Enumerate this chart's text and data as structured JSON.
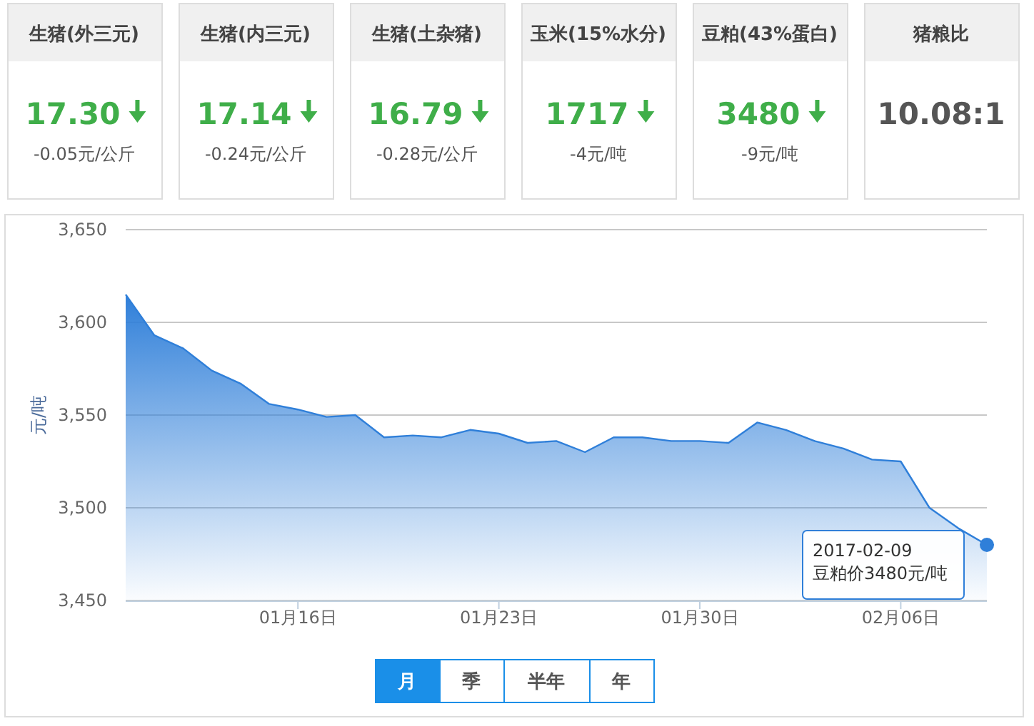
{
  "chart_data": [
    {
      "type": "other",
      "title": "生猪(外三元)",
      "annotations": [
        "17.30",
        "-0.05元/公斤"
      ]
    },
    {
      "type": "other",
      "title": "生猪(内三元)",
      "annotations": [
        "17.14",
        "-0.24元/公斤"
      ]
    },
    {
      "type": "other",
      "title": "生猪(土杂猪)",
      "annotations": [
        "16.79",
        "-0.28元/公斤"
      ]
    },
    {
      "type": "other",
      "title": "玉米(15%水分)",
      "annotations": [
        "1717",
        "-4元/吨"
      ]
    },
    {
      "type": "other",
      "title": "豆粕(43%蛋白)",
      "annotations": [
        "3480",
        "-9元/吨"
      ]
    },
    {
      "type": "other",
      "title": "猪粮比",
      "annotations": [
        "10.08:1"
      ]
    },
    {
      "type": "area",
      "ylabel": "元/吨",
      "grid": "y",
      "marker": "none",
      "x": [
        "2017-01-10",
        "2017-01-11",
        "2017-01-12",
        "2017-01-13",
        "2017-01-14",
        "2017-01-15",
        "2017-01-16",
        "2017-01-17",
        "2017-01-18",
        "2017-01-19",
        "2017-01-20",
        "2017-01-21",
        "2017-01-22",
        "2017-01-23",
        "2017-01-24",
        "2017-01-25",
        "2017-01-26",
        "2017-01-27",
        "2017-01-28",
        "2017-01-29",
        "2017-01-30",
        "2017-01-31",
        "2017-02-01",
        "2017-02-02",
        "2017-02-03",
        "2017-02-04",
        "2017-02-05",
        "2017-02-06",
        "2017-02-07",
        "2017-02-08",
        "2017-02-09"
      ],
      "series": [
        {
          "color": "#2f7fd9",
          "values": [
            3615,
            3593,
            3586,
            3574,
            3567,
            3556,
            3553,
            3549,
            3550,
            3538,
            3539,
            3538,
            3542,
            3540,
            3535,
            3536,
            3530,
            3538,
            3538,
            3536,
            3536,
            3535,
            3546,
            3542,
            3536,
            3532,
            3526,
            3525,
            3500,
            3489,
            3480
          ]
        }
      ],
      "xlim": [
        "2017-01-10",
        "2017-02-09"
      ],
      "xticks": [
        {
          "value": "2017-01-16",
          "label": "01月16日"
        },
        {
          "value": "2017-01-23",
          "label": "01月23日"
        },
        {
          "value": "2017-01-30",
          "label": "01月30日"
        },
        {
          "value": "2017-02-06",
          "label": "02月06日"
        }
      ],
      "ylim": [
        3450,
        3650
      ],
      "yticks": [
        {
          "value": 3450,
          "label": "3,450"
        },
        {
          "value": 3500,
          "label": "3,500"
        },
        {
          "value": 3550,
          "label": "3,550"
        },
        {
          "value": 3600,
          "label": "3,600"
        },
        {
          "value": 3650,
          "label": "3,650"
        }
      ],
      "annotations": [
        {
          "text": "2017-02-09\n豆粕价3480元/吨",
          "x": "2017-02-09",
          "y": 3480
        },
        "月",
        "季",
        "半年",
        "年"
      ]
    }
  ]
}
